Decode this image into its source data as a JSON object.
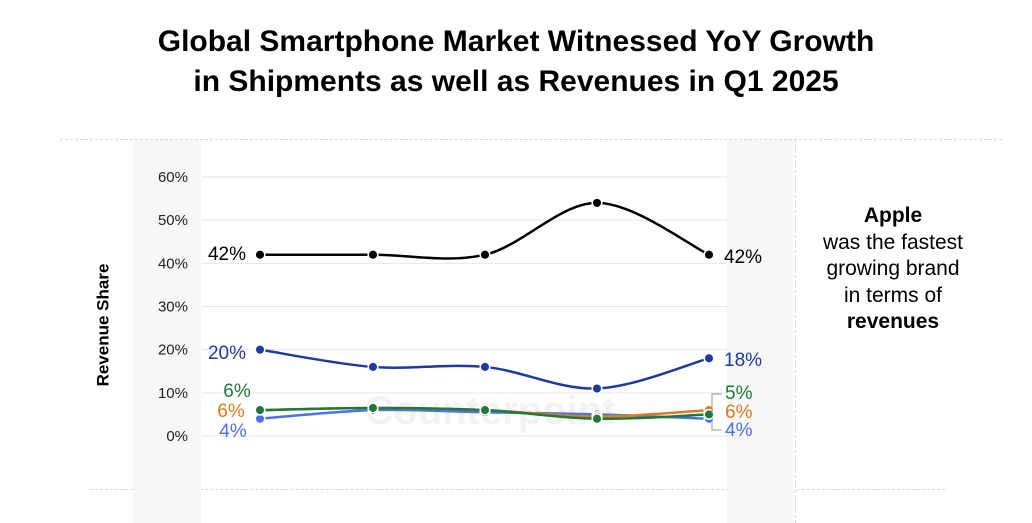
{
  "title_line1": "Global Smartphone Market Witnessed YoY Growth",
  "title_line2": "in Shipments as well as Revenues in Q1 2025",
  "watermark": "Counterpoint",
  "note": {
    "bold_start": "Apple",
    "middle": "was the fastest growing brand in terms of",
    "bold_end": "revenues"
  },
  "chart_data": {
    "type": "line",
    "title": "Global Smartphone Market Witnessed YoY Growth in Shipments as well as Revenues in Q1 2025",
    "ylabel": "Revenue Share",
    "xlabel": "",
    "ylim": [
      0,
      60
    ],
    "yticks": [
      "0%",
      "10%",
      "20%",
      "30%",
      "40%",
      "50%",
      "60%"
    ],
    "grid": true,
    "x": [
      1,
      2,
      3,
      4,
      5
    ],
    "series": [
      {
        "color": "#000000",
        "values": [
          42,
          42,
          42,
          54,
          42
        ],
        "start_label": "42%",
        "end_label": "42%"
      },
      {
        "color": "#1f3a9e",
        "values": [
          20,
          16,
          16,
          11,
          18
        ],
        "start_label": "20%",
        "end_label": "18%"
      },
      {
        "color": "#1e7a3a",
        "values": [
          6,
          6.5,
          6,
          4,
          5
        ],
        "start_label": "6%",
        "end_label": "5%"
      },
      {
        "color": "#e07a20",
        "values": [
          6,
          6.5,
          6,
          4.5,
          6
        ],
        "start_label": "6%",
        "end_label": "6%"
      },
      {
        "color": "#4a72e8",
        "values": [
          4,
          6,
          5.5,
          5,
          4
        ],
        "start_label": "4%",
        "end_label": "4%"
      }
    ]
  }
}
